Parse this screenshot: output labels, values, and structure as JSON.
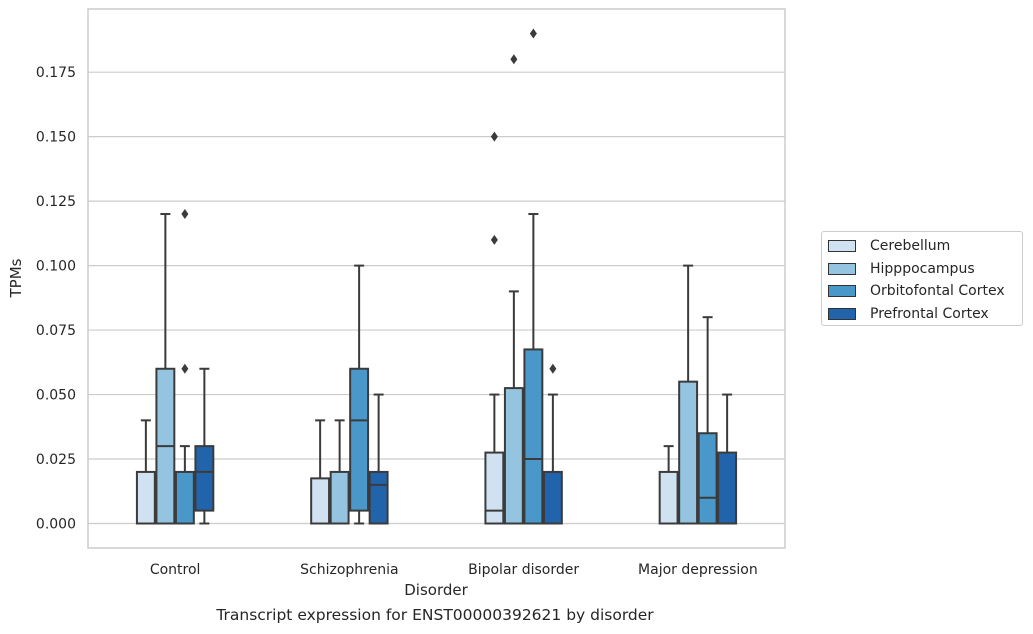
{
  "chart_data": {
    "type": "box",
    "title": "Transcript expression for ENST00000392621 by disorder",
    "xlabel": "Disorder",
    "ylabel": "TPMs",
    "ylim": [
      -0.0095,
      0.1995
    ],
    "yticks": [
      "0.000",
      "0.025",
      "0.050",
      "0.075",
      "0.100",
      "0.125",
      "0.150",
      "0.175"
    ],
    "grid": "horizontal",
    "legend_position": "right",
    "categories": [
      "Control",
      "Schizophrenia",
      "Bipolar disorder",
      "Major depression"
    ],
    "series": [
      {
        "name": "Cerebellum",
        "color": "#d0e1f2",
        "boxes": [
          {
            "min": 0.0,
            "q1": 0.0,
            "median": 0.0,
            "q3": 0.02,
            "max": 0.04,
            "outliers": []
          },
          {
            "min": 0.0,
            "q1": 0.0,
            "median": 0.0,
            "q3": 0.0175,
            "max": 0.04,
            "outliers": []
          },
          {
            "min": 0.0,
            "q1": 0.0,
            "median": 0.005,
            "q3": 0.0275,
            "max": 0.05,
            "outliers": [
              0.11,
              0.15
            ]
          },
          {
            "min": 0.0,
            "q1": 0.0,
            "median": 0.0,
            "q3": 0.02,
            "max": 0.03,
            "outliers": []
          }
        ]
      },
      {
        "name": "Hipppocampus",
        "color": "#94c4df",
        "boxes": [
          {
            "min": 0.0,
            "q1": 0.0,
            "median": 0.03,
            "q3": 0.06,
            "max": 0.12,
            "outliers": []
          },
          {
            "min": 0.0,
            "q1": 0.0,
            "median": 0.0,
            "q3": 0.02,
            "max": 0.04,
            "outliers": []
          },
          {
            "min": 0.0,
            "q1": 0.0,
            "median": 0.0,
            "q3": 0.0525,
            "max": 0.09,
            "outliers": [
              0.18
            ]
          },
          {
            "min": 0.0,
            "q1": 0.0,
            "median": 0.0,
            "q3": 0.055,
            "max": 0.1,
            "outliers": []
          }
        ]
      },
      {
        "name": "Orbitofontal Cortex",
        "color": "#4a98c9",
        "boxes": [
          {
            "min": 0.0,
            "q1": 0.0,
            "median": 0.0,
            "q3": 0.02,
            "max": 0.03,
            "outliers": [
              0.06,
              0.12
            ]
          },
          {
            "min": 0.0,
            "q1": 0.005,
            "median": 0.04,
            "q3": 0.06,
            "max": 0.1,
            "outliers": []
          },
          {
            "min": 0.0,
            "q1": 0.0,
            "median": 0.025,
            "q3": 0.0675,
            "max": 0.12,
            "outliers": [
              0.19
            ]
          },
          {
            "min": 0.0,
            "q1": 0.0,
            "median": 0.01,
            "q3": 0.035,
            "max": 0.08,
            "outliers": []
          }
        ]
      },
      {
        "name": "Prefrontal Cortex",
        "color": "#2164ab",
        "boxes": [
          {
            "min": 0.0,
            "q1": 0.005,
            "median": 0.02,
            "q3": 0.03,
            "max": 0.06,
            "outliers": []
          },
          {
            "min": 0.0,
            "q1": 0.0,
            "median": 0.015,
            "q3": 0.02,
            "max": 0.05,
            "outliers": []
          },
          {
            "min": 0.0,
            "q1": 0.0,
            "median": 0.0,
            "q3": 0.02,
            "max": 0.05,
            "outliers": [
              0.06
            ]
          },
          {
            "min": 0.0,
            "q1": 0.0,
            "median": 0.0,
            "q3": 0.0275,
            "max": 0.05,
            "outliers": []
          }
        ]
      }
    ]
  }
}
